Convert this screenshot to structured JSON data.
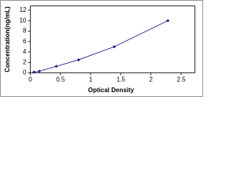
{
  "chart_data": {
    "type": "scatter",
    "x_label": "Optical Density",
    "y_label": "Concentration(ng/mL)",
    "x": [
      0.06,
      0.15,
      0.43,
      0.8,
      1.39,
      2.28
    ],
    "series": [
      {
        "color": "#1a1a8c",
        "values": [
          0.16,
          0.31,
          1.25,
          2.5,
          5,
          10
        ]
      }
    ],
    "xlim": [
      0,
      2.5
    ],
    "xticks": [
      0,
      0.5,
      1,
      1.5,
      2,
      2.5
    ],
    "ylim": [
      0,
      12
    ],
    "yticks": [
      0,
      2,
      4,
      6,
      8,
      10,
      12
    ],
    "grid": false
  }
}
